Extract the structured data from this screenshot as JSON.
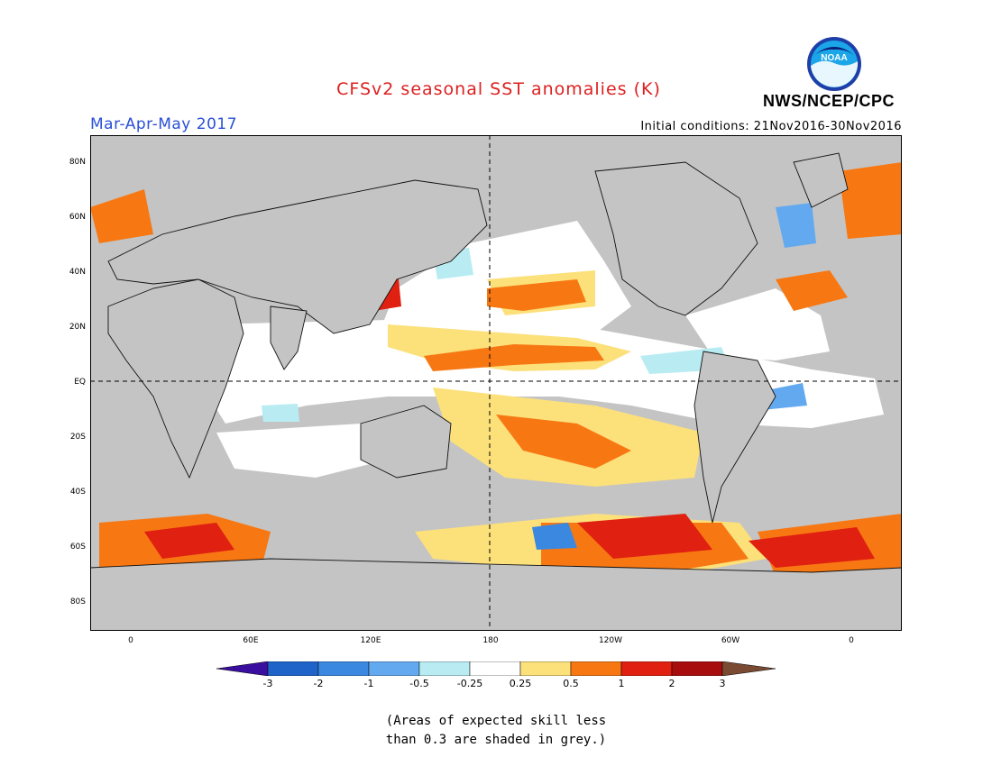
{
  "title": "CFSv2 seasonal SST anomalies (K)",
  "season": "Mar-Apr-May 2017",
  "initial_conditions": "Initial conditions: 21Nov2016-30Nov2016",
  "agency": "NWS/NCEP/CPC",
  "logo_text": "NOAA",
  "colors": {
    "title": "#dd2020",
    "season": "#2a50d6",
    "land_grey": "#c4c4c4",
    "ocean_white": "#ffffff"
  },
  "lat_labels": [
    "80N",
    "60N",
    "40N",
    "20N",
    "EQ",
    "20S",
    "40S",
    "60S",
    "80S"
  ],
  "lon_labels": [
    "0",
    "60E",
    "120E",
    "180",
    "120W",
    "60W",
    "0"
  ],
  "colorbar": {
    "ticks": [
      "-3",
      "-2",
      "-1",
      "-0.5",
      "-0.25",
      "0.25",
      "0.5",
      "1",
      "2",
      "3"
    ],
    "colors": [
      "#3a0fa0",
      "#1f63c8",
      "#3a88e0",
      "#63a9f0",
      "#b8ecf2",
      "#ffffff",
      "#fce07a",
      "#f77813",
      "#e02010",
      "#a80d0d",
      "#7a4a32"
    ]
  },
  "note_lines": [
    "(Areas of expected skill less",
    "than 0.3 are shaded in grey.)"
  ]
}
